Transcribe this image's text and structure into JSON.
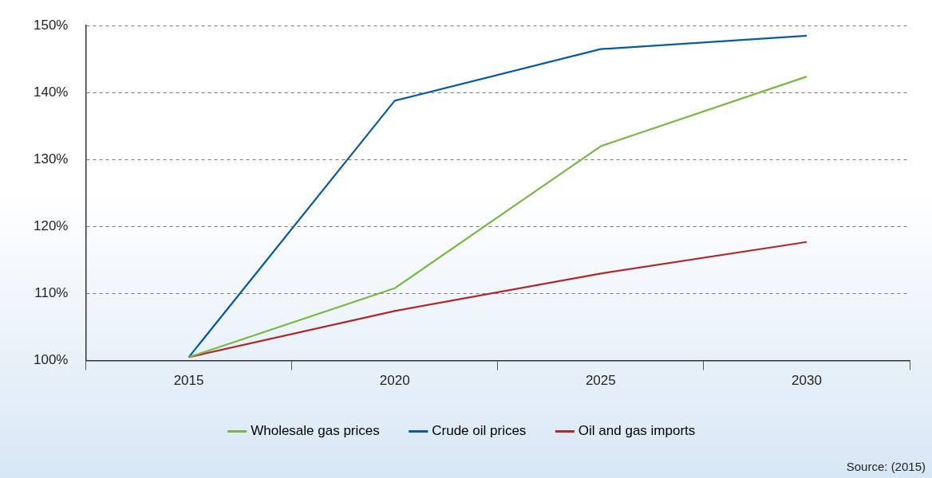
{
  "chart_data": {
    "type": "line",
    "categories": [
      "2015",
      "2020",
      "2025",
      "2030"
    ],
    "series": [
      {
        "name": "Wholesale gas prices",
        "color": "#7ab648",
        "values": [
          100.5,
          110.8,
          132.0,
          142.4
        ]
      },
      {
        "name": "Crude oil prices",
        "color": "#0a5b9c",
        "values": [
          100.5,
          138.8,
          146.5,
          148.5
        ]
      },
      {
        "name": "Oil and gas imports",
        "color": "#b0282f",
        "values": [
          100.5,
          107.4,
          113.0,
          117.7
        ]
      }
    ],
    "ylim": [
      100,
      150
    ],
    "yticks": [
      {
        "value": 100,
        "label": "100%"
      },
      {
        "value": 110,
        "label": "110%"
      },
      {
        "value": 120,
        "label": "120%"
      },
      {
        "value": 130,
        "label": "130%"
      },
      {
        "value": 140,
        "label": "140%"
      },
      {
        "value": 150,
        "label": "150%"
      }
    ],
    "grid": "y",
    "legend": "bottom",
    "marker": "none",
    "line_style": "solid",
    "annotations": [
      "Source: (2015)"
    ]
  }
}
